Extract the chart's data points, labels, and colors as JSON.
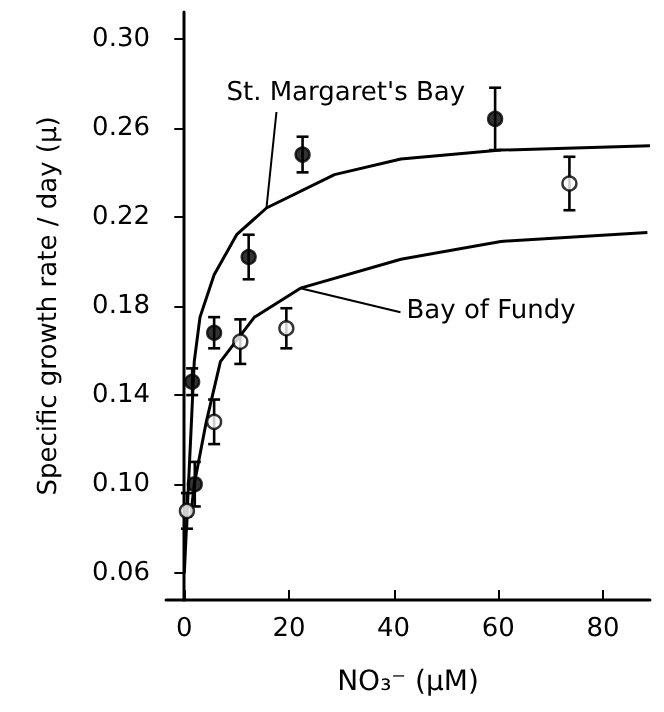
{
  "chart_data": {
    "type": "scatter",
    "xlabel": "NO₃⁻ (μM)",
    "ylabel": "Specific growth rate / day (μ)",
    "xlim": [
      -3.5,
      89
    ],
    "xticks": [
      0,
      20,
      40,
      60,
      80
    ],
    "ylim": [
      0.048,
      0.312
    ],
    "yticks": [
      {
        "value": 0.06,
        "label": "0.06"
      },
      {
        "value": 0.1,
        "label": "0.10"
      },
      {
        "value": 0.14,
        "label": "0.14"
      },
      {
        "value": 0.18,
        "label": "0.18"
      },
      {
        "value": 0.22,
        "label": "0.22"
      },
      {
        "value": 0.26,
        "label": "0.26"
      },
      {
        "value": 0.3,
        "label": "0.30"
      }
    ],
    "grid": false,
    "series": [
      {
        "marker": "circle",
        "color": "#000000",
        "x": [
          1.5,
          2,
          5.7,
          12.3,
          22.6,
          59.4
        ],
        "values": [
          0.146,
          0.1,
          0.168,
          0.202,
          0.248,
          0.264
        ],
        "errors": [
          0.006,
          0.01,
          0.007,
          0.01,
          0.008,
          [
            0.25,
            0.278
          ]
        ]
      },
      {
        "type": "line",
        "marker": "none",
        "name": "St. Margaret's Bay",
        "color": "#000000",
        "x": [
          0,
          0.8,
          1.4,
          1.9,
          3,
          5.7,
          10,
          15.7,
          28.7,
          41.4,
          60.5,
          89
        ],
        "values": [
          0.06,
          0.1,
          0.13,
          0.155,
          0.175,
          0.194,
          0.212,
          0.224,
          0.239,
          0.246,
          0.25,
          0.252
        ]
      },
      {
        "marker": "circle",
        "color": "#ffffff",
        "x": [
          0.5,
          5.7,
          10.7,
          19.5,
          73.6
        ],
        "values": [
          0.088,
          0.128,
          0.164,
          0.17,
          0.235
        ],
        "errors": [
          0.008,
          0.01,
          0.01,
          0.009,
          0.012
        ]
      },
      {
        "type": "line",
        "marker": "none",
        "name": "Bay of Fundy",
        "color": "#000000",
        "x": [
          1.2,
          1.9,
          4.2,
          6.9,
          13.4,
          22.2,
          41.4,
          60.5,
          88.5
        ],
        "values": [
          0.085,
          0.1,
          0.128,
          0.155,
          0.175,
          0.188,
          0.201,
          0.209,
          0.213
        ]
      }
    ]
  }
}
